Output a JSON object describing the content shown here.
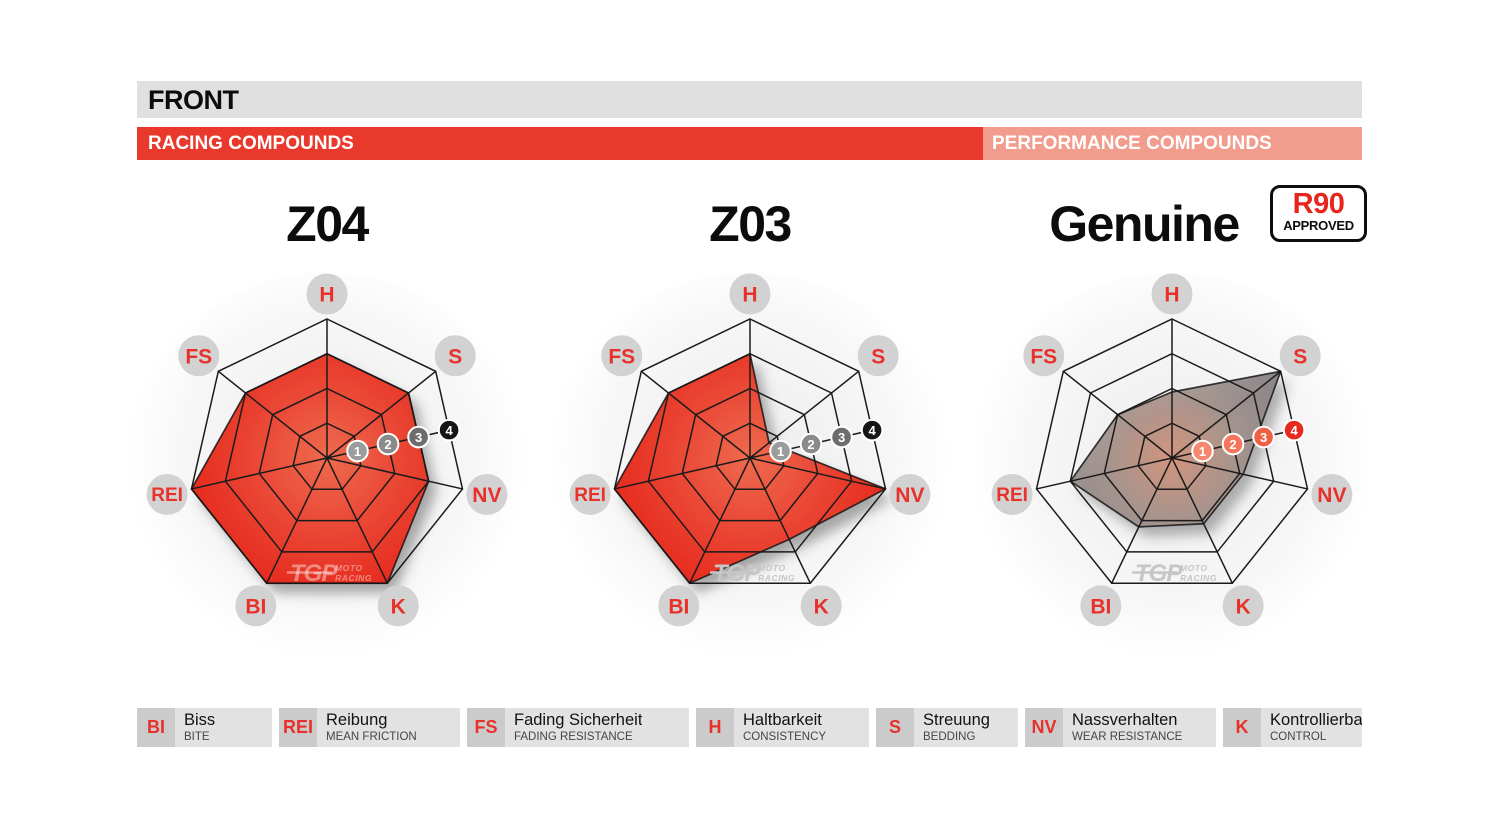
{
  "header": {
    "title": "FRONT",
    "racing_label": "RACING COMPOUNDS",
    "performance_label": "PERFORMANCE COMPOUNDS"
  },
  "badge": {
    "line1": "R90",
    "line2": "APPROVED"
  },
  "watermark": {
    "brand": "TGP",
    "line1": "MOTO",
    "line2": "RACING"
  },
  "colors": {
    "racing_red": "#e9392d",
    "performance_salmon": "#f19c8c",
    "header_gray": "#e0e0e0",
    "grid": "#1b1b1b",
    "axis_label_circle": "#d2d2d2",
    "axis_label_text": "#e8312a",
    "red_gradient": [
      "#ee6b4e",
      "#ea4836",
      "#e62a1e"
    ],
    "gray_gradient": [
      "#d3937a",
      "#9e8e89",
      "#7f7c81"
    ],
    "watermark_on_red": "rgba(255,255,255,0.42)",
    "watermark_on_white": "#c6c6c6"
  },
  "chart_data": [
    {
      "type": "radar",
      "title": "Z04",
      "compound_group": "RACING COMPOUNDS",
      "axes": [
        "H",
        "S",
        "NV",
        "K",
        "BI",
        "REI",
        "FS"
      ],
      "values": [
        3,
        3,
        3,
        4,
        4,
        4,
        3
      ],
      "max": 4,
      "rings": 4,
      "fill": "red",
      "watermark_style": "on_red",
      "scale_labels": [
        "1",
        "2",
        "3",
        "4"
      ],
      "marker_colors": [
        "#9c9c9c",
        "#8a8a8a",
        "#6d6d6d",
        "#161616"
      ]
    },
    {
      "type": "radar",
      "title": "Z03",
      "compound_group": "RACING COMPOUNDS",
      "axes": [
        "H",
        "S",
        "NV",
        "K",
        "BI",
        "REI",
        "FS"
      ],
      "values": [
        3,
        0.7,
        4,
        2.6,
        4,
        4,
        3
      ],
      "max": 4,
      "rings": 4,
      "fill": "red",
      "watermark_style": "on_white",
      "scale_labels": [
        "1",
        "2",
        "3",
        "4"
      ],
      "marker_colors": [
        "#9c9c9c",
        "#8a8a8a",
        "#6d6d6d",
        "#161616"
      ]
    },
    {
      "type": "radar",
      "title": "Genuine",
      "compound_group": "PERFORMANCE COMPOUNDS",
      "badge": "R90 APPROVED",
      "axes": [
        "H",
        "S",
        "NV",
        "K",
        "BI",
        "REI",
        "FS"
      ],
      "values": [
        1.9,
        4,
        2.1,
        2.1,
        2.2,
        3,
        2
      ],
      "max": 4,
      "rings": 4,
      "fill": "gray",
      "watermark_style": "on_white",
      "scale_labels": [
        "1",
        "2",
        "3",
        "4"
      ],
      "marker_colors": [
        "#f5886f",
        "#f3755b",
        "#ef5f44",
        "#e72a1e"
      ]
    }
  ],
  "legend": {
    "items": [
      {
        "abbr": "BI",
        "de": "Biss",
        "en": "BITE"
      },
      {
        "abbr": "REI",
        "de": "Reibung",
        "en": "MEAN FRICTION"
      },
      {
        "abbr": "FS",
        "de": "Fading Sicherheit",
        "en": "FADING RESISTANCE"
      },
      {
        "abbr": "H",
        "de": "Haltbarkeit",
        "en": "CONSISTENCY"
      },
      {
        "abbr": "S",
        "de": "Streuung",
        "en": "BEDDING"
      },
      {
        "abbr": "NV",
        "de": "Nassverhalten",
        "en": "WEAR RESISTANCE"
      },
      {
        "abbr": "K",
        "de": "Kontrollierbarkeit",
        "en": "CONTROL"
      }
    ]
  }
}
